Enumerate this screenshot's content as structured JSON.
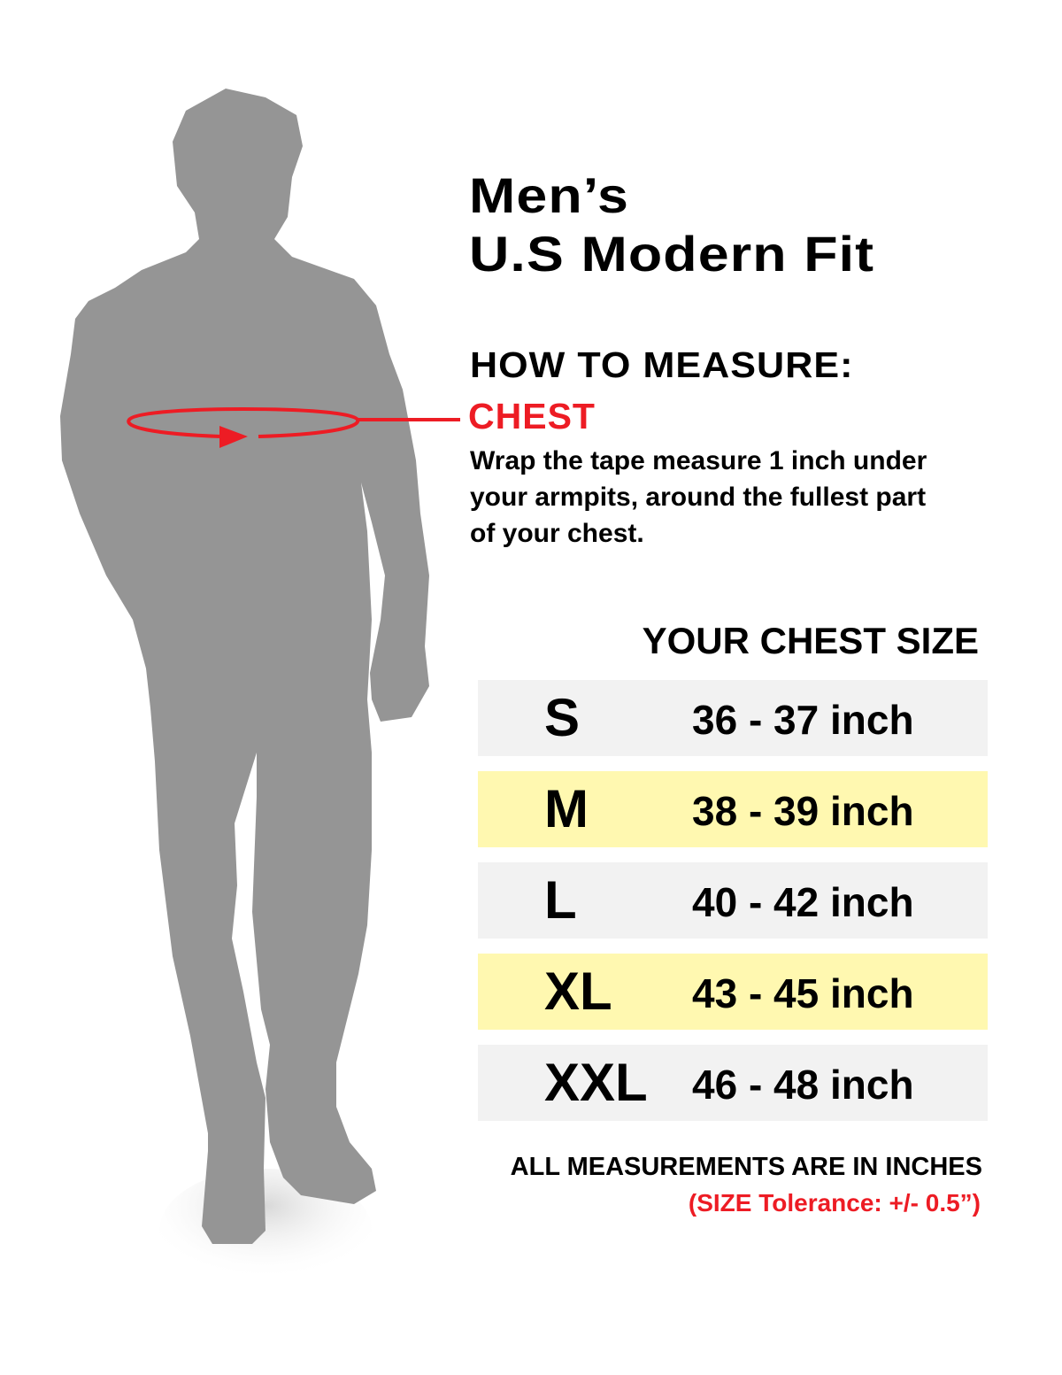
{
  "title": {
    "line1": "Men’s",
    "line2": "U.S Modern Fit"
  },
  "how_to": {
    "heading": "HOW TO MEASURE:",
    "label": "CHEST",
    "description": [
      "Wrap the tape measure 1 inch under",
      "your armpits, around the fullest part",
      "of your chest."
    ]
  },
  "table": {
    "heading": "YOUR CHEST SIZE",
    "rows": [
      {
        "size": "S",
        "range": "36 - 37 inch",
        "highlight": false
      },
      {
        "size": "M",
        "range": "38 - 39 inch",
        "highlight": true
      },
      {
        "size": "L",
        "range": "40 - 42 inch",
        "highlight": false
      },
      {
        "size": "XL",
        "range": "43 - 45 inch",
        "highlight": true
      },
      {
        "size": "XXL",
        "range": "46 - 48 inch",
        "highlight": false
      }
    ]
  },
  "footer": {
    "note": "ALL MEASUREMENTS ARE IN INCHES",
    "tolerance": "(SIZE Tolerance: +/- 0.5”)"
  },
  "colors": {
    "accent_red": "#ed1c24",
    "row_gray": "#f2f2f2",
    "row_yellow": "#fff8b0",
    "silhouette": "#959595"
  },
  "icons": {
    "figure": "man-silhouette",
    "tape": "tape-measure-arrow"
  }
}
